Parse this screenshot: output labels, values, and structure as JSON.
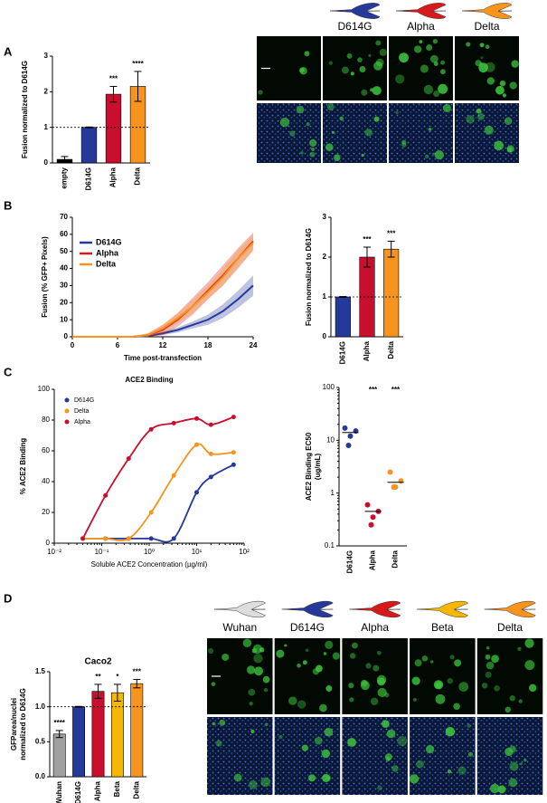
{
  "panel_labels": [
    "A",
    "B",
    "C",
    "D"
  ],
  "image_headers": {
    "A": [
      "D614G",
      "Alpha",
      "Delta"
    ],
    "D": [
      "Wuhan",
      "D614G",
      "Alpha",
      "Beta",
      "Delta"
    ]
  },
  "chart_data": [
    {
      "type": "bar",
      "ylabel": [
        "Fusion normalized to D614G"
      ],
      "categories": [
        "empty",
        "D614G",
        "Alpha",
        "Delta"
      ],
      "values": [
        0.1,
        1.0,
        1.93,
        2.15
      ],
      "errors": [
        0.08,
        0.01,
        0.22,
        0.42
      ],
      "colors": [
        "#000000",
        "#24399a",
        "#c8102e",
        "#f7941d"
      ],
      "annotations": [
        null,
        null,
        "***",
        "****"
      ],
      "reference_line": 1,
      "ylim": [
        0,
        3
      ],
      "yticks": [
        0,
        1,
        2,
        3
      ]
    },
    {
      "type": "line",
      "ylabel": "Fusion (% GFP+ Pixels)",
      "xlabel": "Time post-transfection",
      "x": [
        0,
        2,
        4,
        6,
        8,
        10,
        12,
        14,
        16,
        18,
        20,
        22,
        24
      ],
      "series": [
        {
          "name": "D614G",
          "color": "#24399a",
          "values": [
            0,
            0,
            0,
            0,
            0,
            0.5,
            2,
            4,
            7,
            10,
            15,
            22,
            30
          ],
          "error": [
            0,
            0,
            0,
            0,
            0,
            0.5,
            1,
            1.5,
            2,
            3,
            4,
            5,
            6
          ]
        },
        {
          "name": "Alpha",
          "color": "#d7191c",
          "values": [
            0,
            0,
            0,
            0,
            0,
            1,
            4,
            10,
            18,
            27,
            36,
            46,
            56
          ],
          "error": [
            0,
            0,
            0,
            0,
            0,
            1,
            3,
            4,
            5,
            5,
            6,
            6,
            5
          ]
        },
        {
          "name": "Delta",
          "color": "#f7941d",
          "values": [
            0,
            0,
            0,
            0,
            0,
            1,
            5,
            11,
            18,
            26,
            35,
            46,
            55
          ],
          "error": [
            0,
            0,
            0,
            0,
            0,
            1,
            2,
            3,
            4,
            4,
            5,
            5,
            5
          ]
        }
      ],
      "xlim": [
        0,
        24
      ],
      "xticks": [
        0,
        6,
        12,
        18,
        24
      ],
      "ylim": [
        0,
        70
      ],
      "yticks": [
        0,
        10,
        20,
        30,
        40,
        50,
        60,
        70
      ]
    },
    {
      "type": "bar",
      "ylabel": [
        "Fusion normalized to D614G"
      ],
      "categories": [
        "D614G",
        "Alpha",
        "Delta"
      ],
      "values": [
        1.0,
        2.0,
        2.2
      ],
      "errors": [
        0.01,
        0.25,
        0.2
      ],
      "colors": [
        "#24399a",
        "#c8102e",
        "#f7941d"
      ],
      "annotations": [
        null,
        "***",
        "***"
      ],
      "reference_line": 1,
      "ylim": [
        0,
        3
      ],
      "yticks": [
        0,
        1,
        2,
        3
      ]
    },
    {
      "type": "dose",
      "title": "ACE2 Binding",
      "ylabel": "% ACE2 Binding",
      "xlabel": "Soluble ACE2 Concentration (µg/ml)",
      "x": [
        0.04,
        0.12,
        0.37,
        1.1,
        3.3,
        10,
        20,
        60
      ],
      "xlog": true,
      "series": [
        {
          "name": "D614G",
          "color": "#24399a",
          "values": [
            3,
            3,
            3,
            3,
            3,
            33,
            43,
            51
          ]
        },
        {
          "name": "Delta",
          "color": "#f7941d",
          "values": [
            3,
            3,
            3,
            20,
            44,
            64,
            58,
            59
          ]
        },
        {
          "name": "Alpha",
          "color": "#c8102e",
          "values": [
            3,
            31,
            55,
            74,
            78,
            81,
            77,
            82
          ]
        }
      ],
      "xlim": [
        0.01,
        100
      ],
      "xticks": [
        {
          "value": 0.01,
          "label": "10⁻²"
        },
        {
          "value": 0.1,
          "label": "10⁻¹"
        },
        {
          "value": 1,
          "label": "10⁰"
        },
        {
          "value": 10,
          "label": "10¹"
        },
        {
          "value": 100,
          "label": "10²"
        }
      ],
      "ylim": [
        0,
        100
      ],
      "yticks": [
        0,
        20,
        40,
        60,
        80,
        100
      ]
    },
    {
      "type": "dotplot",
      "ylabel": [
        "ACE2 Binding EC50",
        "(ug/mL)"
      ],
      "categories": [
        "D614G",
        "Alpha",
        "Delta"
      ],
      "points": [
        [
          17,
          12,
          15,
          8
        ],
        [
          0.6,
          0.35,
          0.45,
          0.25
        ],
        [
          2.5,
          1.3,
          1.7,
          1.3
        ]
      ],
      "centers": [
        14,
        0.45,
        1.6
      ],
      "colors": [
        "#24399a",
        "#c8102e",
        "#f7941d"
      ],
      "annotations": [
        null,
        "***",
        "***"
      ],
      "ylog": true,
      "ylim": [
        0.1,
        100
      ],
      "yticks": [
        0.1,
        1,
        10,
        100
      ]
    },
    {
      "type": "bar",
      "title": "Caco2",
      "ylabel": [
        "GFParea/nuclei",
        "normalized to D614G"
      ],
      "categories": [
        "Wuhan",
        "D614G",
        "Alpha",
        "Beta",
        "Delta"
      ],
      "values": [
        0.61,
        1.0,
        1.22,
        1.2,
        1.33
      ],
      "errors": [
        0.05,
        0.005,
        0.1,
        0.12,
        0.06
      ],
      "colors": [
        "#a0a0a0",
        "#24399a",
        "#c8102e",
        "#f5b700",
        "#f7941d"
      ],
      "annotations": [
        "****",
        null,
        "**",
        "*",
        "***"
      ],
      "reference_line": 1,
      "ylim": [
        0,
        1.5
      ],
      "yticks": [
        {
          "value": 0,
          "label": "0.0"
        },
        {
          "value": 0.5,
          "label": "0.5"
        },
        {
          "value": 1,
          "label": "1.0"
        },
        {
          "value": 1.5,
          "label": "1.5"
        }
      ]
    }
  ]
}
